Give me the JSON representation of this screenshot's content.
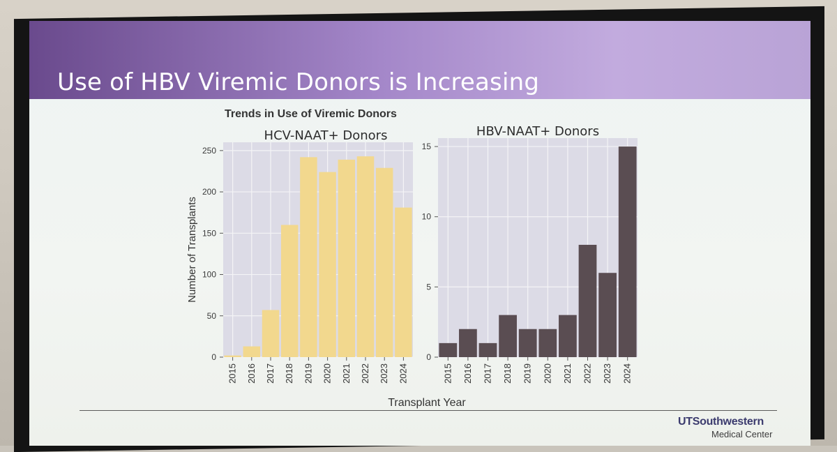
{
  "slide": {
    "title": "Use of HBV Viremic Donors is Increasing",
    "logo_main": "UTSouthwestern",
    "logo_sub": "Medical Center"
  },
  "chart_data": [
    {
      "type": "bar",
      "title": "Trends in Use of Viremic Donors",
      "subtitle": "HCV-NAAT+ Donors",
      "xlabel": "Transplant Year",
      "ylabel": "Number of Transplants",
      "categories": [
        "2015",
        "2016",
        "2017",
        "2018",
        "2019",
        "2020",
        "2021",
        "2022",
        "2023",
        "2024"
      ],
      "values": [
        2,
        13,
        57,
        160,
        242,
        224,
        239,
        243,
        229,
        181
      ],
      "ylim": [
        0,
        250
      ],
      "yticks": [
        0,
        50,
        100,
        150,
        200,
        250
      ],
      "color": "#f2d88e",
      "grid": true
    },
    {
      "type": "bar",
      "subtitle": "HBV-NAAT+ Donors",
      "xlabel": "Transplant Year",
      "categories": [
        "2015",
        "2016",
        "2017",
        "2018",
        "2019",
        "2020",
        "2021",
        "2022",
        "2023",
        "2024"
      ],
      "values": [
        1,
        2,
        1,
        3,
        2,
        2,
        3,
        8,
        6,
        15
      ],
      "ylim": [
        0,
        15
      ],
      "yticks": [
        0,
        5,
        10,
        15
      ],
      "color": "#5a4d52",
      "grid": true
    }
  ]
}
